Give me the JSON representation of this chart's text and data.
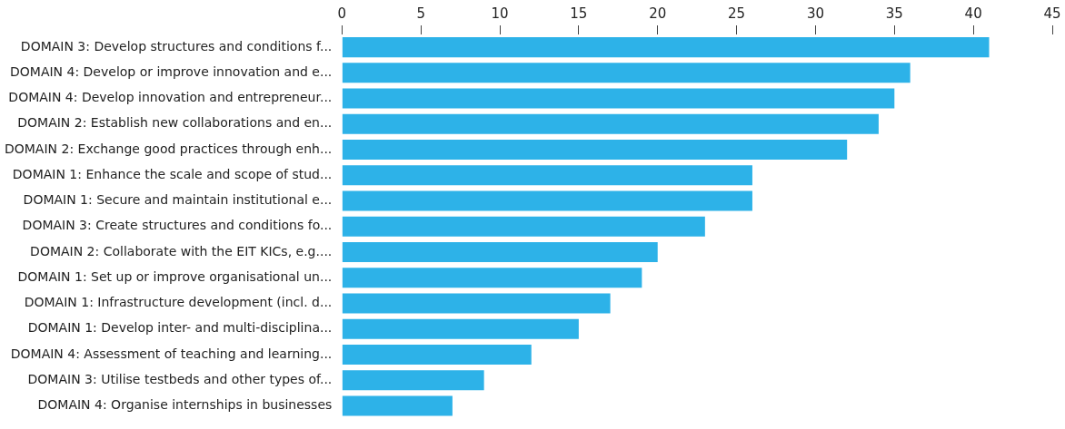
{
  "chart_data": {
    "type": "bar",
    "orientation": "horizontal",
    "categories": [
      "DOMAIN 3: Develop structures and conditions f...",
      "DOMAIN 4: Develop or improve innovation and e...",
      "DOMAIN 4: Develop innovation and entrepreneur...",
      "DOMAIN 2: Establish new collaborations and en...",
      "DOMAIN 2: Exchange good practices through enh...",
      "DOMAIN 1: Enhance the scale and scope of stud...",
      "DOMAIN 1: Secure and maintain institutional e...",
      "DOMAIN 3: Create structures and conditions fo...",
      "DOMAIN 2: Collaborate with the EIT KICs, e.g....",
      "DOMAIN 1: Set up or improve organisational un...",
      "DOMAIN 1: Infrastructure development (incl. d...",
      "DOMAIN 1: Develop inter- and multi-disciplina...",
      "DOMAIN 4: Assessment of teaching and learning...",
      "DOMAIN 3: Utilise testbeds and other types of...",
      "DOMAIN 4: Organise internships in businesses"
    ],
    "values": [
      41,
      36,
      35,
      34,
      32,
      26,
      26,
      23,
      20,
      19,
      17,
      15,
      12,
      9,
      7
    ],
    "color": "#2db2e8",
    "xlim": [
      0,
      45
    ],
    "xticks": [
      0,
      5,
      10,
      15,
      20,
      25,
      30,
      35,
      40,
      45
    ],
    "grid": false,
    "legend": false
  }
}
